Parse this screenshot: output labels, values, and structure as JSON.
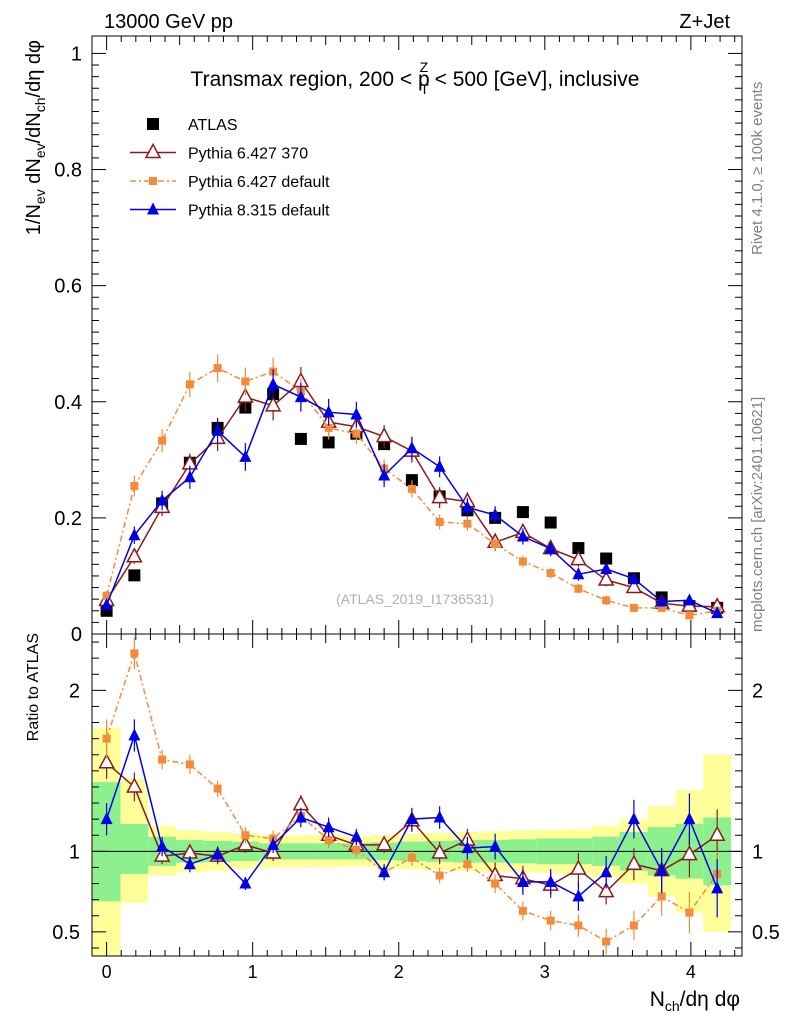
{
  "header": {
    "left": "13000 GeV pp",
    "right": "Z+Jet"
  },
  "title": {
    "prefix": "Transmax region, 200 < p",
    "sup": "Z",
    "sub": "T",
    "suffix": " < 500 [GeV], inclusive"
  },
  "side_labels": {
    "rivet": "Rivet 4.1.0, ≥ 100k events",
    "mcplots": "mcplots.cern.ch [arXiv:2401.10621]"
  },
  "watermark": "(ATLAS_2019_I1736531)",
  "colors": {
    "atlas": "#000000",
    "pythia6_370": "#8b1a1a",
    "pythia6_default": "#f28c3a",
    "pythia8": "#0000e6",
    "band_inner": "#8cf08c",
    "band_outer": "#ffff99"
  },
  "chart_data": {
    "type": "scatter",
    "x": [
      0.0,
      0.19,
      0.38,
      0.57,
      0.76,
      0.95,
      1.14,
      1.33,
      1.52,
      1.71,
      1.9,
      2.09,
      2.28,
      2.47,
      2.66,
      2.85,
      3.04,
      3.23,
      3.42,
      3.61,
      3.8,
      3.99,
      4.18
    ],
    "xlabel": "N_ch/dη dφ",
    "xlim": [
      -0.1,
      4.35
    ],
    "xticks": [
      "0",
      "1",
      "2",
      "3",
      "4"
    ],
    "main": {
      "ylabel": "1/N_ev dN_ev/dN_ch/dη dφ",
      "ylim": [
        0,
        1.03
      ],
      "yticks": [
        "0",
        "0.2",
        "0.4",
        "0.6",
        "0.8",
        "1"
      ],
      "series": [
        {
          "name": "ATLAS",
          "marker": "square",
          "values": [
            0.04,
            0.101,
            0.225,
            0.295,
            0.355,
            0.39,
            0.413,
            0.336,
            0.33,
            0.345,
            0.327,
            0.265,
            0.237,
            0.213,
            0.2,
            0.21,
            0.192,
            0.148,
            0.13,
            0.096,
            0.063,
            0.048,
            0.045
          ],
          "errors": [
            0.004,
            0.006,
            0.008,
            0.008,
            0.008,
            0.008,
            0.008,
            0.008,
            0.008,
            0.008,
            0.008,
            0.008,
            0.008,
            0.008,
            0.008,
            0.008,
            0.008,
            0.008,
            0.008,
            0.008,
            0.006,
            0.006,
            0.006
          ]
        },
        {
          "name": "Pythia 6.427 370",
          "marker": "open-triangle",
          "values": [
            0.058,
            0.133,
            0.218,
            0.293,
            0.337,
            0.408,
            0.393,
            0.435,
            0.365,
            0.357,
            0.34,
            0.315,
            0.235,
            0.228,
            0.158,
            0.175,
            0.147,
            0.128,
            0.093,
            0.08,
            0.053,
            0.048,
            0.047
          ],
          "errors": [
            0.008,
            0.012,
            0.015,
            0.018,
            0.022,
            0.025,
            0.025,
            0.025,
            0.022,
            0.02,
            0.02,
            0.02,
            0.018,
            0.016,
            0.015,
            0.014,
            0.013,
            0.012,
            0.011,
            0.01,
            0.009,
            0.008,
            0.008
          ]
        },
        {
          "name": "Pythia 6.427 default",
          "marker": "small-square",
          "dashed": true,
          "values": [
            0.066,
            0.255,
            0.333,
            0.43,
            0.458,
            0.435,
            0.452,
            0.418,
            0.355,
            0.345,
            0.285,
            0.25,
            0.193,
            0.19,
            0.155,
            0.125,
            0.105,
            0.078,
            0.058,
            0.045,
            0.045,
            0.032,
            0.04
          ],
          "errors": [
            0.008,
            0.018,
            0.02,
            0.022,
            0.024,
            0.024,
            0.024,
            0.022,
            0.02,
            0.018,
            0.016,
            0.015,
            0.013,
            0.012,
            0.011,
            0.01,
            0.009,
            0.008,
            0.008,
            0.007,
            0.007,
            0.006,
            0.006
          ]
        },
        {
          "name": "Pythia 8.315 default",
          "marker": "triangle",
          "values": [
            0.05,
            0.17,
            0.23,
            0.27,
            0.35,
            0.305,
            0.43,
            0.408,
            0.382,
            0.378,
            0.273,
            0.32,
            0.288,
            0.218,
            0.205,
            0.168,
            0.147,
            0.103,
            0.112,
            0.095,
            0.056,
            0.058,
            0.036
          ],
          "errors": [
            0.008,
            0.015,
            0.017,
            0.02,
            0.022,
            0.024,
            0.026,
            0.025,
            0.023,
            0.022,
            0.02,
            0.02,
            0.018,
            0.016,
            0.015,
            0.014,
            0.012,
            0.011,
            0.01,
            0.01,
            0.008,
            0.008,
            0.007
          ]
        }
      ]
    },
    "ratio": {
      "ylabel": "Ratio to ATLAS",
      "ylim": [
        0.35,
        2.35
      ],
      "yticks": [
        "0.5",
        "1",
        "2"
      ],
      "reference_line": 1.0,
      "band_inner": [
        [
          0.69,
          1.43
        ],
        [
          0.86,
          1.17
        ],
        [
          0.91,
          1.09
        ],
        [
          0.93,
          1.07
        ],
        [
          0.935,
          1.065
        ],
        [
          0.94,
          1.06
        ],
        [
          0.95,
          1.05
        ],
        [
          0.95,
          1.05
        ],
        [
          0.95,
          1.05
        ],
        [
          0.95,
          1.05
        ],
        [
          0.945,
          1.055
        ],
        [
          0.94,
          1.06
        ],
        [
          0.935,
          1.065
        ],
        [
          0.93,
          1.07
        ],
        [
          0.93,
          1.07
        ],
        [
          0.925,
          1.075
        ],
        [
          0.92,
          1.08
        ],
        [
          0.92,
          1.08
        ],
        [
          0.91,
          1.09
        ],
        [
          0.88,
          1.12
        ],
        [
          0.85,
          1.15
        ],
        [
          0.83,
          1.17
        ],
        [
          0.79,
          1.21
        ]
      ],
      "band_outer": [
        [
          0.3,
          1.77
        ],
        [
          0.68,
          1.45
        ],
        [
          0.85,
          1.16
        ],
        [
          0.87,
          1.13
        ],
        [
          0.88,
          1.12
        ],
        [
          0.89,
          1.11
        ],
        [
          0.9,
          1.1
        ],
        [
          0.9,
          1.1
        ],
        [
          0.9,
          1.1
        ],
        [
          0.905,
          1.095
        ],
        [
          0.9,
          1.1
        ],
        [
          0.89,
          1.11
        ],
        [
          0.885,
          1.115
        ],
        [
          0.88,
          1.12
        ],
        [
          0.875,
          1.125
        ],
        [
          0.87,
          1.13
        ],
        [
          0.865,
          1.135
        ],
        [
          0.86,
          1.14
        ],
        [
          0.84,
          1.16
        ],
        [
          0.8,
          1.2
        ],
        [
          0.72,
          1.28
        ],
        [
          0.62,
          1.38
        ],
        [
          0.5,
          1.6
        ]
      ],
      "series": [
        {
          "name": "Pythia 6.427 370",
          "values": [
            1.55,
            1.4,
            0.97,
            0.99,
            0.97,
            1.04,
            0.99,
            1.29,
            1.1,
            1.04,
            1.04,
            1.19,
            0.99,
            1.07,
            0.85,
            0.83,
            0.79,
            0.89,
            0.75,
            0.92,
            0.88,
            0.98,
            1.1
          ],
          "errors": [
            0.1,
            0.09,
            0.05,
            0.05,
            0.05,
            0.05,
            0.05,
            0.06,
            0.06,
            0.05,
            0.05,
            0.07,
            0.07,
            0.07,
            0.08,
            0.08,
            0.08,
            0.1,
            0.08,
            0.1,
            0.12,
            0.14,
            0.16
          ]
        },
        {
          "name": "Pythia 6.427 default",
          "values": [
            1.7,
            2.23,
            1.57,
            1.54,
            1.39,
            1.1,
            1.08,
            1.22,
            1.07,
            1.01,
            0.87,
            0.96,
            0.85,
            0.92,
            0.8,
            0.63,
            0.57,
            0.54,
            0.44,
            0.54,
            0.72,
            0.62,
            0.86
          ],
          "errors": [
            0.12,
            0.1,
            0.06,
            0.06,
            0.05,
            0.05,
            0.05,
            0.05,
            0.05,
            0.05,
            0.05,
            0.05,
            0.05,
            0.05,
            0.06,
            0.06,
            0.06,
            0.07,
            0.08,
            0.09,
            0.12,
            0.13,
            0.14
          ]
        },
        {
          "name": "Pythia 8.315 default",
          "values": [
            1.2,
            1.72,
            1.03,
            0.92,
            0.98,
            0.8,
            1.04,
            1.21,
            1.15,
            1.09,
            0.87,
            1.2,
            1.21,
            1.02,
            1.03,
            0.81,
            0.81,
            0.72,
            0.87,
            1.2,
            0.88,
            1.2,
            0.77
          ],
          "errors": [
            0.1,
            0.1,
            0.06,
            0.05,
            0.05,
            0.04,
            0.05,
            0.06,
            0.06,
            0.05,
            0.05,
            0.07,
            0.07,
            0.07,
            0.08,
            0.08,
            0.08,
            0.09,
            0.1,
            0.12,
            0.14,
            0.16,
            0.18
          ]
        }
      ]
    }
  }
}
